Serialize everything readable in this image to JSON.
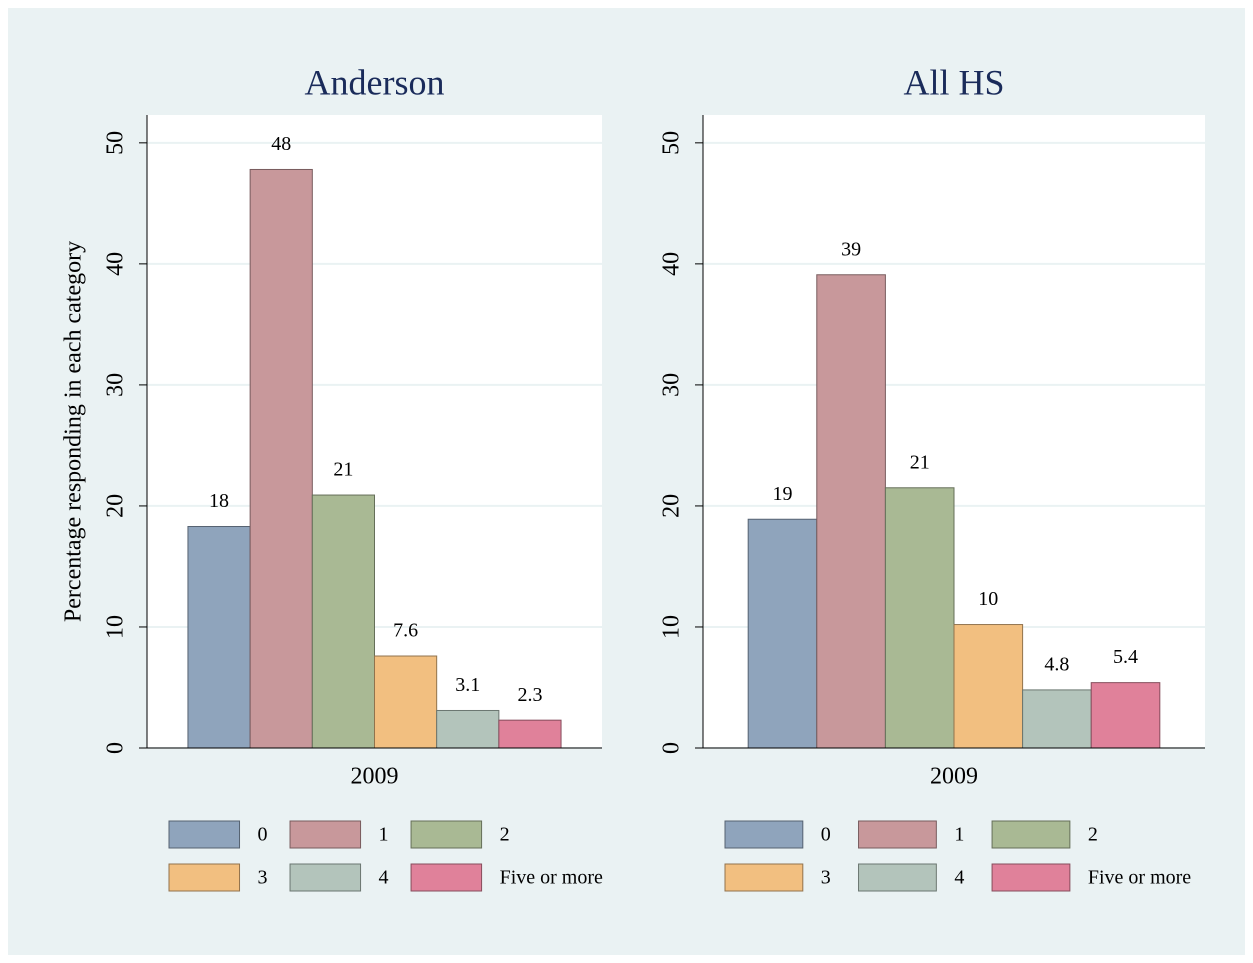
{
  "chart_data": [
    {
      "type": "bar",
      "title": "Anderson",
      "y_label": "Percentage responding in each category",
      "categories": [
        "2009"
      ],
      "series": [
        {
          "name": "0",
          "color": "#8fa4bc",
          "values": [
            18.3
          ],
          "value_labels": [
            "18"
          ]
        },
        {
          "name": "1",
          "color": "#c8989b",
          "values": [
            47.8
          ],
          "value_labels": [
            "48"
          ]
        },
        {
          "name": "2",
          "color": "#a9b994",
          "values": [
            20.9
          ],
          "value_labels": [
            "21"
          ]
        },
        {
          "name": "3",
          "color": "#f2bf80",
          "values": [
            7.6
          ],
          "value_labels": [
            "7.6"
          ]
        },
        {
          "name": "4",
          "color": "#b3c4bb",
          "values": [
            3.1
          ],
          "value_labels": [
            "3.1"
          ]
        },
        {
          "name": "Five or more",
          "color": "#e0819a",
          "values": [
            2.3
          ],
          "value_labels": [
            "2.3"
          ]
        }
      ],
      "ylim": [
        0,
        52.3
      ],
      "yticks": [
        0,
        10,
        20,
        30,
        40,
        50
      ],
      "grid": true,
      "legend": "bottom"
    },
    {
      "type": "bar",
      "title": "All HS",
      "categories": [
        "2009"
      ],
      "series": [
        {
          "name": "0",
          "color": "#8fa4bc",
          "values": [
            18.9
          ],
          "value_labels": [
            "19"
          ]
        },
        {
          "name": "1",
          "color": "#c8989b",
          "values": [
            39.1
          ],
          "value_labels": [
            "39"
          ]
        },
        {
          "name": "2",
          "color": "#a9b994",
          "values": [
            21.5
          ],
          "value_labels": [
            "21"
          ]
        },
        {
          "name": "3",
          "color": "#f2bf80",
          "values": [
            10.2
          ],
          "value_labels": [
            "10"
          ]
        },
        {
          "name": "4",
          "color": "#b3c4bb",
          "values": [
            4.8
          ],
          "value_labels": [
            "4.8"
          ]
        },
        {
          "name": "Five or more",
          "color": "#e0819a",
          "values": [
            5.4
          ],
          "value_labels": [
            "5.4"
          ]
        }
      ],
      "ylim": [
        0,
        52.3
      ],
      "yticks": [
        0,
        10,
        20,
        30,
        40,
        50
      ],
      "grid": true,
      "legend": "bottom"
    }
  ]
}
